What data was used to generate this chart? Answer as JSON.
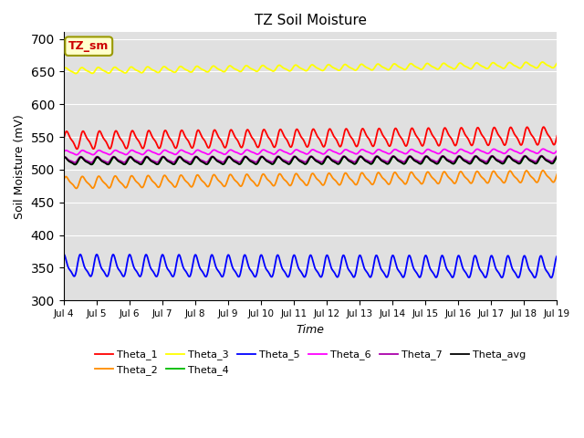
{
  "title": "TZ Soil Moisture",
  "xlabel": "Time",
  "ylabel": "Soil Moisture (mV)",
  "ylim": [
    300,
    710
  ],
  "xlim_days": [
    4,
    19
  ],
  "num_points": 1500,
  "series": [
    {
      "name": "Theta_1",
      "color": "#ff0000",
      "base": 545,
      "amp": 12,
      "freq": 2.0,
      "phase": 0.0,
      "trend": 0.45
    },
    {
      "name": "Theta_2",
      "color": "#ff8c00",
      "base": 480,
      "amp": 8,
      "freq": 2.0,
      "phase": 0.3,
      "trend": 0.65
    },
    {
      "name": "Theta_3",
      "color": "#ffff00",
      "base": 651,
      "amp": 4,
      "freq": 2.0,
      "phase": 0.5,
      "trend": 0.6
    },
    {
      "name": "Theta_4",
      "color": "#00bb00",
      "base": 513,
      "amp": 5,
      "freq": 2.0,
      "phase": 0.8,
      "trend": 0.1
    },
    {
      "name": "Theta_5",
      "color": "#0000ff",
      "base": 352,
      "amp": 15,
      "freq": 2.0,
      "phase": 1.2,
      "trend": -0.15
    },
    {
      "name": "Theta_6",
      "color": "#ff00ff",
      "base": 526,
      "amp": 3,
      "freq": 2.0,
      "phase": 0.2,
      "trend": 0.15
    },
    {
      "name": "Theta_7",
      "color": "#aa00aa",
      "base": 515,
      "amp": 4,
      "freq": 2.0,
      "phase": 1.0,
      "trend": 0.1
    },
    {
      "name": "Theta_avg",
      "color": "#000000",
      "base": 513,
      "amp": 5,
      "freq": 2.0,
      "phase": 0.9,
      "trend": 0.1
    }
  ],
  "legend_box_label": "TZ_sm",
  "legend_box_bg": "#ffffcc",
  "legend_box_text_color": "#cc0000",
  "bg_color": "#e0e0e0",
  "tick_labels": [
    "Jul 4",
    "Jul 5",
    "Jul 6",
    "Jul 7",
    "Jul 8",
    "Jul 9",
    "Jul 10",
    "Jul 11",
    "Jul 12",
    "Jul 13",
    "Jul 14",
    "Jul 15",
    "Jul 16",
    "Jul 17",
    "Jul 18",
    "Jul 19"
  ]
}
